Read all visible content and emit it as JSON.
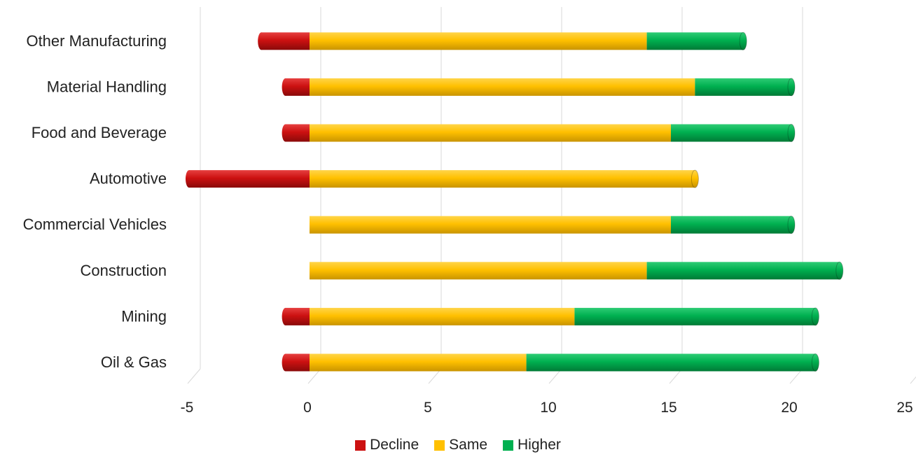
{
  "chart_data": {
    "type": "bar",
    "orientation": "horizontal",
    "stacked": true,
    "title": "",
    "xlabel": "",
    "ylabel": "",
    "categories": [
      "Oil & Gas",
      "Mining",
      "Construction",
      "Commercial Vehicles",
      "Automotive",
      "Food and Beverage",
      "Material Handling",
      "Other Manufacturing"
    ],
    "series": [
      {
        "name": "Decline",
        "color": "#cc1111",
        "values": [
          -1,
          -1,
          0,
          0,
          -5,
          -1,
          -1,
          -2
        ]
      },
      {
        "name": "Same",
        "color": "#ffc000",
        "values": [
          9,
          11,
          14,
          15,
          16,
          15,
          16,
          14
        ]
      },
      {
        "name": "Higher",
        "color": "#00b050",
        "values": [
          12,
          10,
          8,
          5,
          0,
          5,
          4,
          4
        ]
      }
    ],
    "xlim": [
      -5,
      25
    ],
    "xticks": [
      "-5",
      "0",
      "5",
      "10",
      "15",
      "20",
      "25"
    ],
    "grid": true,
    "legend_position": "bottom"
  }
}
